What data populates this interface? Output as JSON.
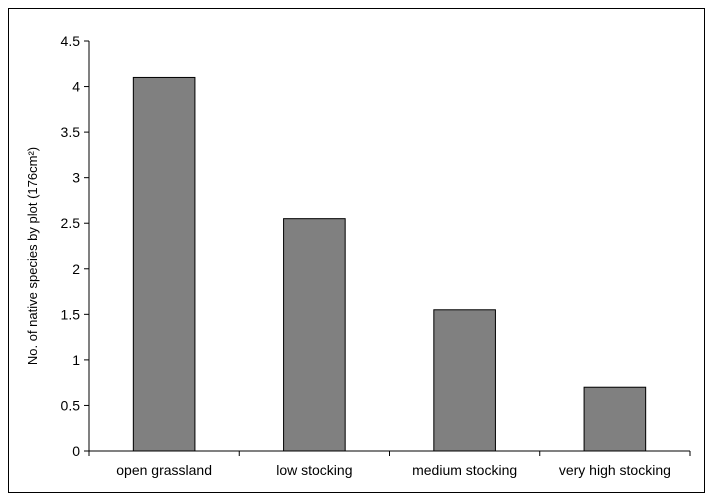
{
  "chart_data": {
    "type": "bar",
    "title": "",
    "xlabel": "",
    "ylabel": "No. of native species by plot (176cm²)",
    "categories": [
      "open grassland",
      "low stocking",
      "medium stocking",
      "very high stocking"
    ],
    "values": [
      4.1,
      2.55,
      1.55,
      0.7
    ],
    "ylim": [
      0,
      4.5
    ],
    "yticks": [
      "0",
      "0.5",
      "1",
      "1.5",
      "2",
      "2.5",
      "3",
      "3.5",
      "4",
      "4.5"
    ],
    "grid": false,
    "legend": "none",
    "bar_color": "#808080",
    "bar_border_color": "#000000"
  }
}
